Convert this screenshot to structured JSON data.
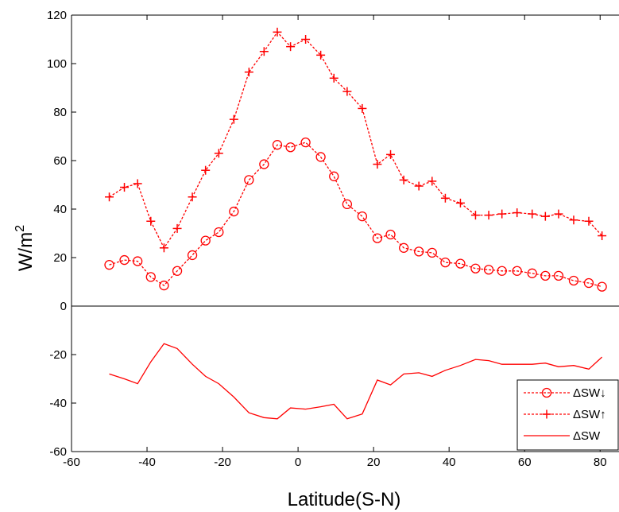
{
  "chart_data": {
    "type": "line",
    "xlabel": "Latitude(S-N)",
    "ylabel": "W/m",
    "ylabel_superscript": "2",
    "xlim": [
      -60,
      85
    ],
    "ylim": [
      -60,
      120
    ],
    "xticks": [
      -60,
      -40,
      -20,
      0,
      20,
      40,
      60,
      80
    ],
    "yticks": [
      -60,
      -40,
      -20,
      0,
      20,
      40,
      60,
      80,
      100,
      120
    ],
    "zero_line": true,
    "legend_position": "lower-right",
    "color": "#ff0000",
    "series": [
      {
        "name": "ΔSW↓",
        "style": "dashed",
        "marker": "circle",
        "x": [
          -50,
          -46,
          -42.5,
          -39,
          -35.5,
          -32,
          -28,
          -24.5,
          -21,
          -17,
          -13,
          -9,
          -5.5,
          -2,
          2,
          6,
          9.5,
          13,
          17,
          21,
          24.5,
          28,
          32,
          35.5,
          39,
          43,
          47,
          50.5,
          54,
          58,
          62,
          65.5,
          69,
          73,
          77,
          80.5
        ],
        "values": [
          17,
          19,
          18.5,
          12,
          8.5,
          14.5,
          21,
          27,
          30.5,
          39,
          52,
          58.5,
          66.5,
          65.5,
          67.5,
          61.5,
          53.5,
          42,
          37,
          28,
          29.5,
          24,
          22.5,
          22,
          18,
          17.5,
          15.5,
          15,
          14.5,
          14.5,
          13.5,
          12.5,
          12.5,
          10.5,
          9.5,
          8
        ]
      },
      {
        "name": "ΔSW↑",
        "style": "dashed",
        "marker": "plus",
        "x": [
          -50,
          -46,
          -42.5,
          -39,
          -35.5,
          -32,
          -28,
          -24.5,
          -21,
          -17,
          -13,
          -9,
          -5.5,
          -2,
          2,
          6,
          9.5,
          13,
          17,
          21,
          24.5,
          28,
          32,
          35.5,
          39,
          43,
          47,
          50.5,
          54,
          58,
          62,
          65.5,
          69,
          73,
          77,
          80.5
        ],
        "values": [
          45,
          49,
          50.5,
          35,
          24,
          32,
          45,
          56,
          63,
          77,
          96.5,
          105,
          113,
          107,
          110,
          103.5,
          94,
          88.5,
          81.5,
          58.5,
          62.5,
          52,
          49.5,
          51.5,
          44.5,
          42.5,
          37.5,
          37.5,
          38,
          38.5,
          38,
          37,
          38,
          35.5,
          35,
          29
        ]
      },
      {
        "name": "ΔSW",
        "style": "solid",
        "marker": "none",
        "x": [
          -50,
          -46,
          -42.5,
          -39,
          -35.5,
          -32,
          -28,
          -24.5,
          -21,
          -17,
          -13,
          -9,
          -5.5,
          -2,
          2,
          6,
          9.5,
          13,
          17,
          21,
          24.5,
          28,
          32,
          35.5,
          39,
          43,
          47,
          50.5,
          54,
          58,
          62,
          65.5,
          69,
          73,
          77,
          80.5
        ],
        "values": [
          -28,
          -30,
          -32,
          -23,
          -15.5,
          -17.5,
          -24,
          -29,
          -32,
          -37.5,
          -44,
          -46,
          -46.5,
          -42,
          -42.5,
          -41.5,
          -40.5,
          -46.5,
          -44.5,
          -30.5,
          -32.5,
          -28,
          -27.5,
          -29,
          -26.5,
          -24.5,
          -22,
          -22.5,
          -24,
          -24,
          -24,
          -23.5,
          -25,
          -24.5,
          -26,
          -21
        ]
      }
    ]
  }
}
